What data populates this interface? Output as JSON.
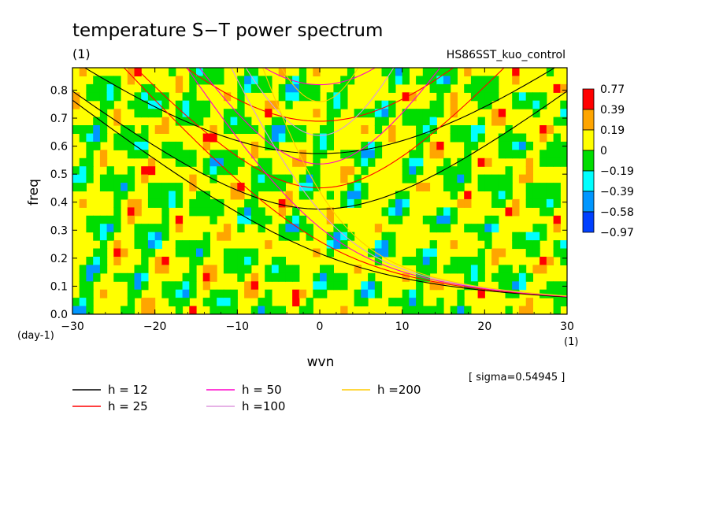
{
  "figure": {
    "title": "temperature S−T power spectrum",
    "subtitle": "(1)",
    "run_name": "HS86SST_kuo_control",
    "sigma_note": "[ sigma=0.54945 ]"
  },
  "chart_data": {
    "type": "heatmap",
    "title": "temperature S−T power spectrum",
    "xlabel": "wvn",
    "x_unit": "(1)",
    "ylabel": "freq",
    "y_unit": "(day-1)",
    "xlim": [
      -30,
      30
    ],
    "ylim": [
      0,
      0.88
    ],
    "x_ticks": [
      -30,
      -20,
      -10,
      0,
      10,
      20,
      30
    ],
    "y_ticks": [
      0.0,
      0.1,
      0.2,
      0.3,
      0.4,
      0.5,
      0.6,
      0.7,
      0.8
    ],
    "colorbar": {
      "labels": [
        "0.77",
        "0.39",
        "0.19",
        "0",
        "−0.19",
        "−0.39",
        "−0.58",
        "−0.97"
      ],
      "colors": [
        "#ff0000",
        "#ffa500",
        "#ffff00",
        "#00dd00",
        "#00ffff",
        "#0096ff",
        "#0040ff"
      ]
    },
    "dispersion_curves": [
      {
        "name": "h = 12",
        "h": 12,
        "color": "#000000"
      },
      {
        "name": "h = 25",
        "h": 25,
        "color": "#ff0000"
      },
      {
        "name": "h = 50",
        "h": 50,
        "color": "#ff00cc"
      },
      {
        "name": "h =100",
        "h": 100,
        "color": "#dd99dd"
      },
      {
        "name": "h =200",
        "h": 200,
        "color": "#ffcc00"
      }
    ]
  }
}
